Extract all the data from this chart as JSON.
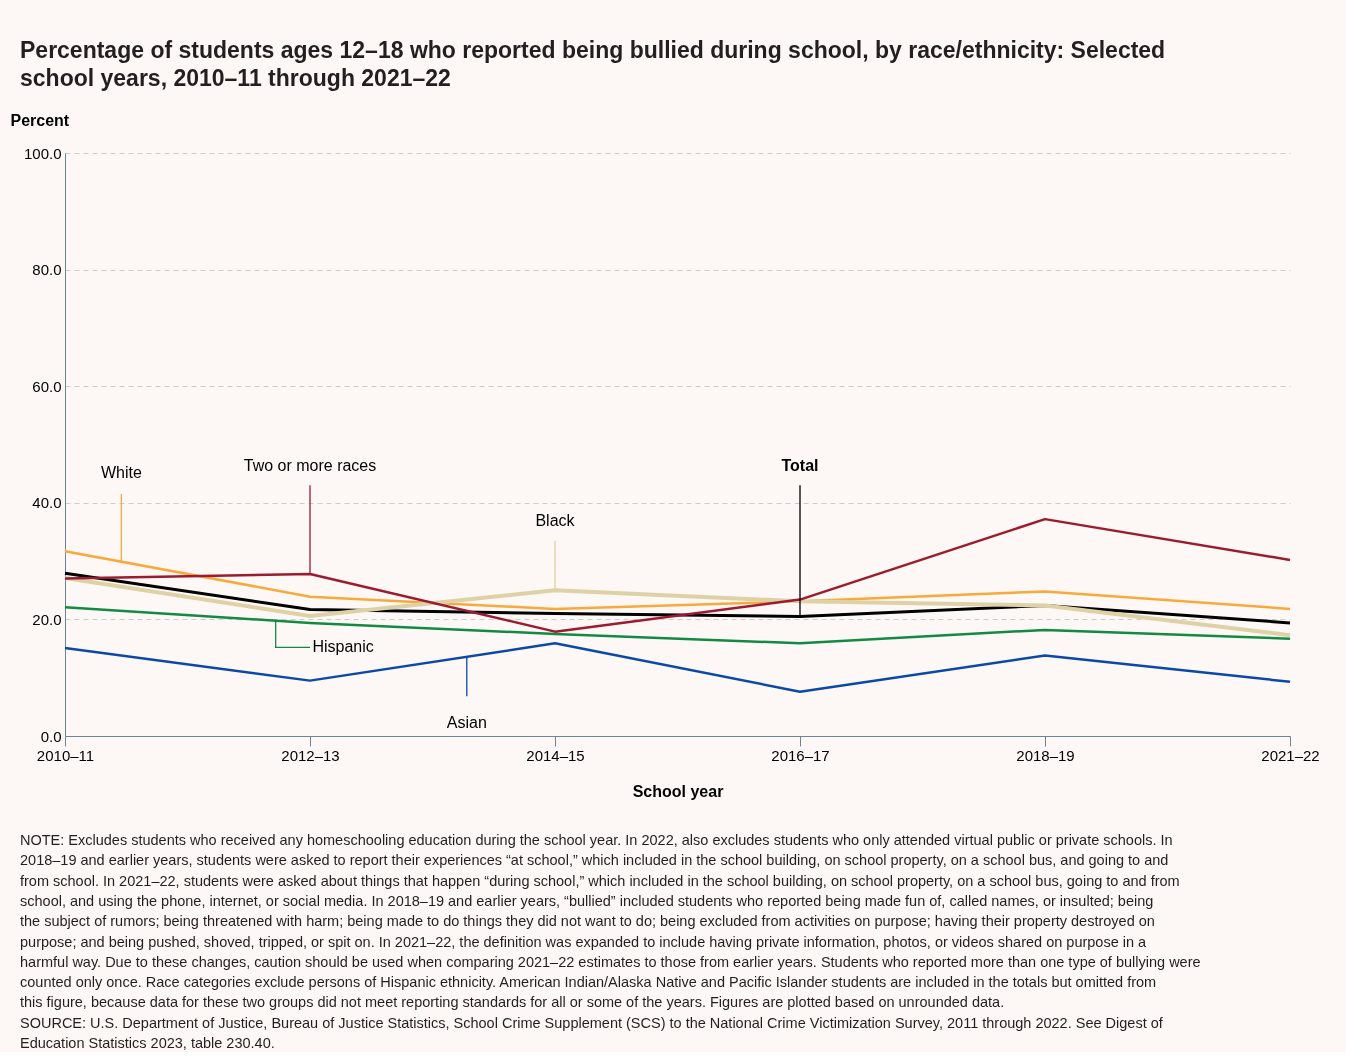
{
  "chart_data": {
    "type": "line",
    "title": "Percentage of students ages 12–18 who reported being bullied during school, by race/ethnicity: Selected school years, 2010–11 through 2021–22",
    "xlabel": "School year",
    "ylabel": "Percent",
    "categories": [
      "2010–11",
      "2012–13",
      "2014–15",
      "2016–17",
      "2018–19",
      "2021–22"
    ],
    "ylim": [
      0,
      100
    ],
    "yticks": [
      {
        "value": 0,
        "label": "0.0"
      },
      {
        "value": 20,
        "label": "20.0"
      },
      {
        "value": 40,
        "label": "40.0"
      },
      {
        "value": 60,
        "label": "60.0"
      },
      {
        "value": 80,
        "label": "80.0"
      },
      {
        "value": 100,
        "label": "100.0"
      }
    ],
    "grid": "y",
    "marker": "none",
    "line_style": "solid",
    "series": [
      {
        "name": "Total",
        "color": "#000000",
        "values": [
          27.9,
          21.7,
          21.0,
          20.5,
          22.4,
          19.4
        ]
      },
      {
        "name": "White",
        "color": "#f9a93b",
        "values": [
          31.7,
          23.9,
          21.8,
          23.1,
          24.8,
          21.8
        ]
      },
      {
        "name": "Black",
        "color": "#ddd1a5",
        "values": [
          27.1,
          20.6,
          25.0,
          23.1,
          22.4,
          17.3
        ]
      },
      {
        "name": "Hispanic",
        "color": "#128a43",
        "values": [
          22.1,
          19.4,
          17.5,
          15.9,
          18.2,
          16.7
        ]
      },
      {
        "name": "Asian",
        "color": "#0b48a8",
        "values": [
          15.1,
          9.5,
          15.9,
          7.6,
          13.8,
          9.3
        ]
      },
      {
        "name": "Two or more races",
        "color": "#9b1b30",
        "values": [
          27.0,
          27.8,
          17.9,
          23.4,
          37.2,
          30.2
        ]
      }
    ],
    "annotations": [
      "NOTE: Excludes students who received any homeschooling education during the school year. In 2022, also excludes students who only attended virtual public or private schools. In 2018–19 and earlier years, students were asked to report their experiences “at school,” which included in the school building, on school property, on a school bus, and going to and from school. In 2021–22, students were asked about things that happen “during school,” which included in the school building, on school property, on a school bus, going to and from school, and using the phone, internet, or social media. In 2018–19 and earlier years, “bullied” included students who reported being made fun of, called names, or insulted; being the subject of rumors; being threatened with harm; being made to do things they did not want to do; being excluded from activities on purpose; having their property destroyed on purpose; and being pushed, shoved, tripped, or spit on. In 2021–22, the definition was expanded to include having private information, photos, or videos shared on purpose in a harmful way. Due to these changes, caution should be used when comparing 2021–22 estimates to those from earlier years. Students who reported more than one type of bullying were counted only once. Race categories exclude persons of Hispanic ethnicity. American Indian/Alaska Native and Pacific Islander students are included in the totals but omitted from this figure, because data for these two groups did not meet reporting standards for all or some of the years. Figures are plotted based on unrounded data.",
      "SOURCE: U.S. Department of Justice, Bureau of Justice Statistics, School Crime Supplement (SCS) to the National Crime Victimization Survey, 2011 through 2022. See Digest of Education Statistics 2023, table 230.40."
    ]
  }
}
